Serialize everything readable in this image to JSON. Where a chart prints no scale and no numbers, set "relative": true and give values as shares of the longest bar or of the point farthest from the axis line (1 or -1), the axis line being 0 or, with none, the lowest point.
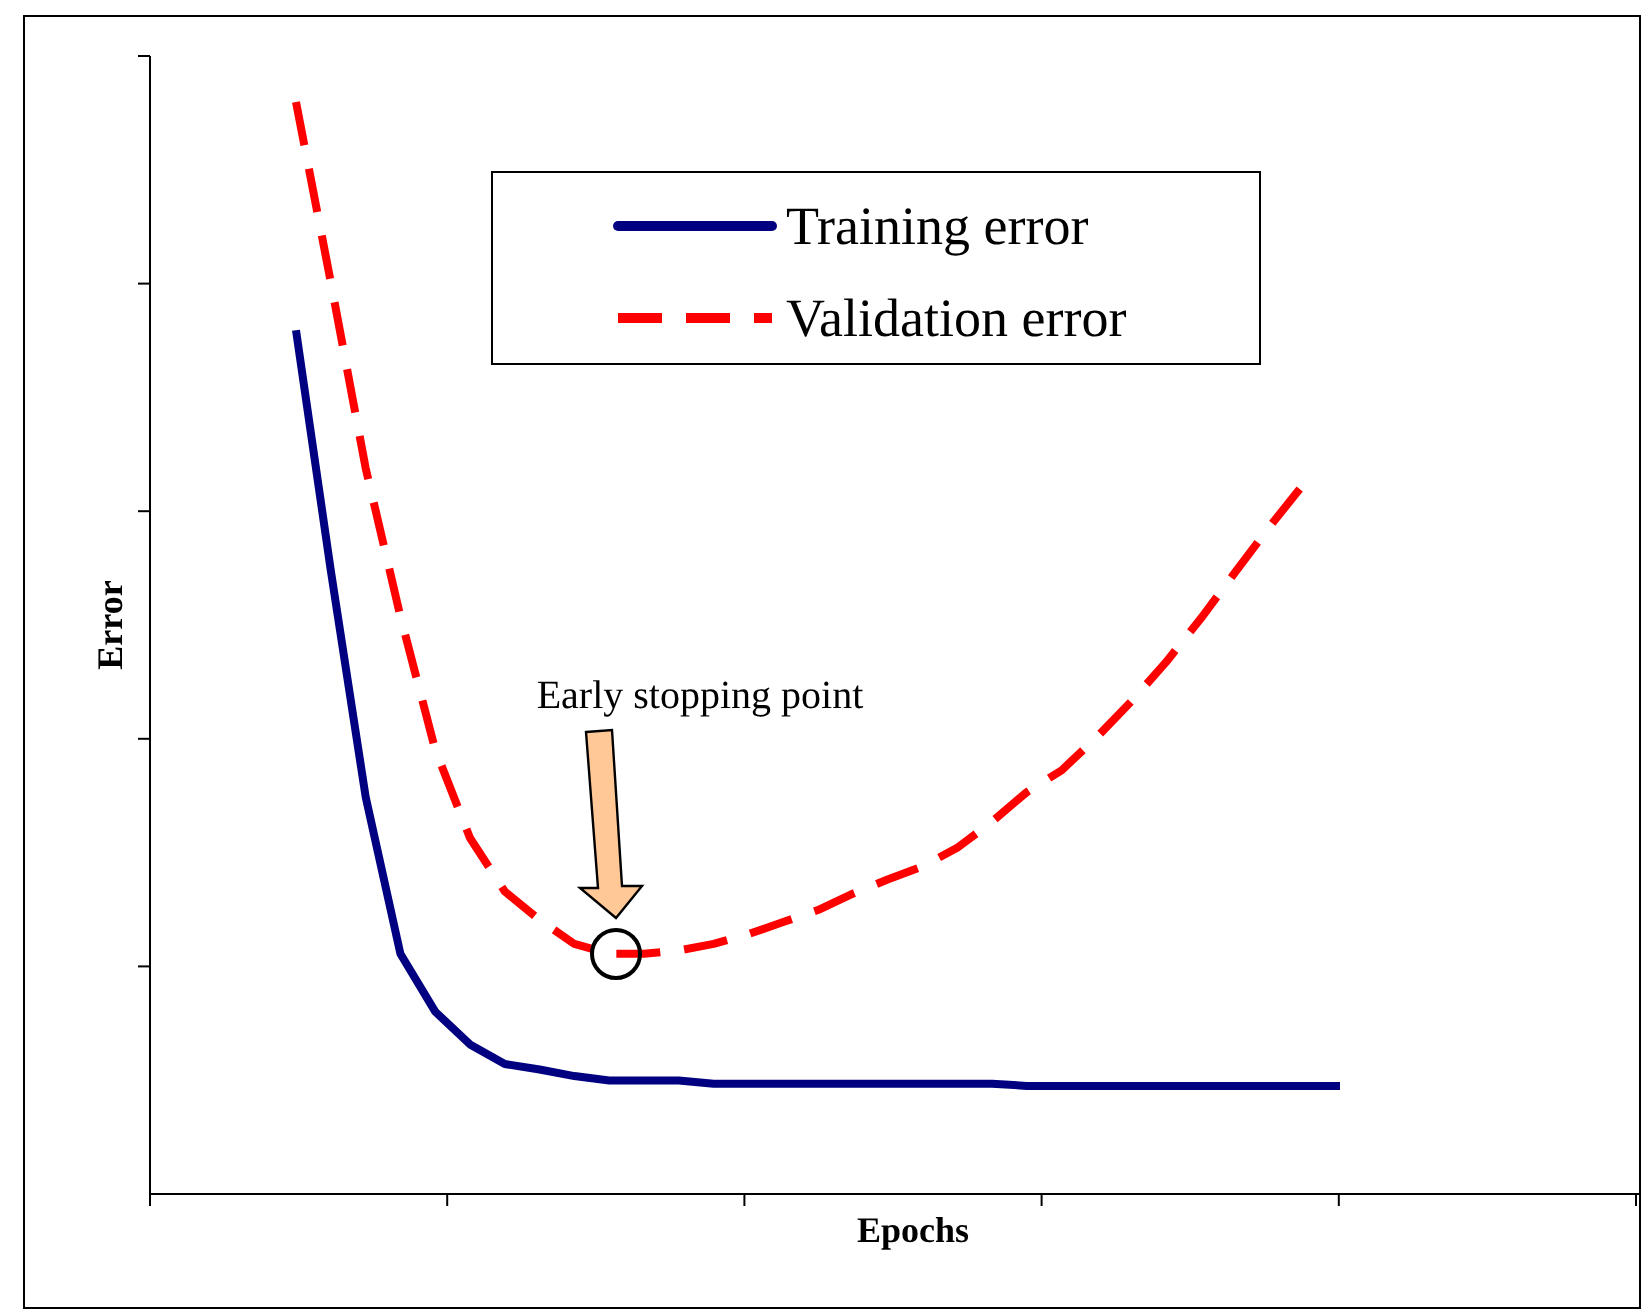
{
  "chart_data": {
    "type": "line",
    "relative": true,
    "xlabel": "Epochs",
    "ylabel": "Error",
    "legend": "top right",
    "grid": false,
    "categories": [
      null,
      null,
      null,
      null,
      null,
      null,
      null,
      null,
      null,
      null,
      null,
      null,
      null,
      null,
      null,
      null,
      null,
      null,
      null,
      null,
      null,
      null,
      null,
      null,
      null,
      null,
      null,
      null,
      null,
      null,
      null
    ],
    "series": [
      {
        "name": "Training error",
        "color": "#000080",
        "line_style": "solid",
        "values": [
          0.791,
          0.571,
          0.364,
          0.22,
          0.167,
          0.137,
          0.119,
          0.114,
          0.108,
          0.104,
          0.104,
          0.104,
          0.101,
          0.101,
          0.101,
          0.101,
          0.101,
          0.101,
          0.101,
          0.101,
          0.101,
          0.099,
          0.099,
          0.099,
          0.099,
          0.099,
          0.099,
          0.099,
          0.099,
          0.099,
          0.099
        ]
      },
      {
        "name": "Validation error",
        "color": "#ff0000",
        "line_style": "dashed",
        "values": [
          1,
          0.835,
          0.665,
          0.529,
          0.407,
          0.326,
          0.277,
          0.251,
          0.229,
          0.22,
          0.22,
          0.223,
          0.229,
          0.238,
          0.249,
          0.26,
          0.275,
          0.288,
          0.3,
          0.317,
          0.341,
          0.368,
          0.388,
          0.418,
          0.451,
          0.487,
          0.527,
          0.57,
          0.612,
          0.652,
          null
        ]
      }
    ],
    "annotations": [
      "Early stopping point"
    ]
  }
}
